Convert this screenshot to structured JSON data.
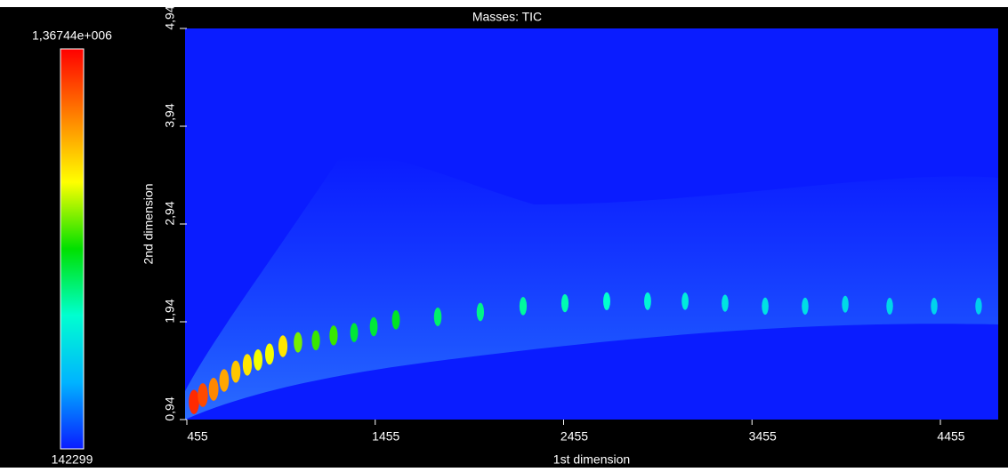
{
  "chart_data": {
    "type": "heatmap",
    "title": "Masses: TIC",
    "x_label": "1st dimension",
    "y_label": "2nd dimension",
    "xlim": [
      455,
      4762
    ],
    "ylim": [
      0.94,
      4.94
    ],
    "xticks": [
      455,
      1455,
      2455,
      3455,
      4455
    ],
    "yticks": [
      {
        "value": 0.94,
        "label": "0,94"
      },
      {
        "value": 1.94,
        "label": "1,94"
      },
      {
        "value": 2.94,
        "label": "2,94"
      },
      {
        "value": 3.94,
        "label": "3,94"
      },
      {
        "value": 4.94,
        "label": "4,94"
      }
    ],
    "zlim": [
      142299,
      1367440
    ],
    "zticks": [
      142299,
      {
        "value": 1367440,
        "label": "1,36744e+006"
      }
    ],
    "colormap": [
      "#0a1cff",
      "#00b4ff",
      "#00ffd0",
      "#00e000",
      "#ffff00",
      "#ff8000",
      "#ff0000"
    ],
    "peaks": {
      "x": [
        493,
        540,
        597,
        653,
        715,
        776,
        833,
        894,
        965,
        1045,
        1140,
        1234,
        1343,
        1447,
        1565,
        1787,
        2013,
        2240,
        2462,
        2684,
        2901,
        3100,
        3312,
        3525,
        3737,
        3950,
        4186,
        4422,
        4658
      ],
      "y": [
        1.12,
        1.19,
        1.25,
        1.34,
        1.43,
        1.5,
        1.55,
        1.61,
        1.69,
        1.73,
        1.75,
        1.8,
        1.83,
        1.89,
        1.96,
        1.99,
        2.04,
        2.1,
        2.13,
        2.15,
        2.15,
        2.15,
        2.13,
        2.1,
        2.1,
        2.12,
        2.1,
        2.1,
        2.1
      ],
      "values": [
        1300000,
        1250000,
        1150000,
        1100000,
        1050000,
        1000000,
        950000,
        950000,
        1000000,
        850000,
        800000,
        800000,
        700000,
        700000,
        720000,
        650000,
        620000,
        600000,
        580000,
        550000,
        520000,
        500000,
        480000,
        470000,
        460000,
        450000,
        440000,
        430000,
        420000
      ]
    }
  }
}
